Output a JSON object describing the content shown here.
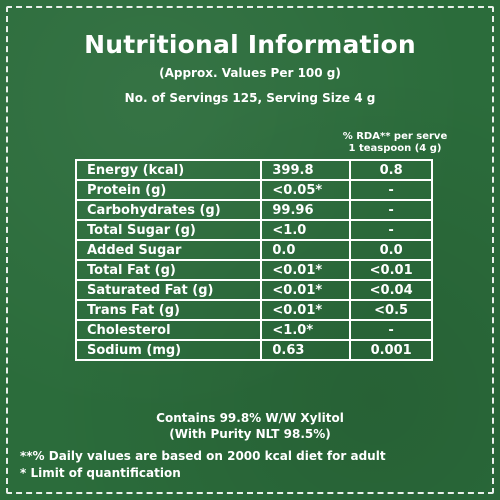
{
  "header": {
    "title": "Nutritional Information",
    "subtitle": "(Approx. Values Per 100 g)",
    "servings": "No. of Servings 125, Serving Size 4 g"
  },
  "rda_header": {
    "line1": "% RDA** per serve",
    "line2": "1 teaspoon (4 g)"
  },
  "table": {
    "rows": [
      {
        "name": "Energy (kcal)",
        "value": "399.8",
        "rda": "0.8"
      },
      {
        "name": "Protein (g)",
        "value": "<0.05*",
        "rda": "-"
      },
      {
        "name": "Carbohydrates (g)",
        "value": "99.96",
        "rda": "-"
      },
      {
        "name": "Total Sugar (g)",
        "value": "<1.0",
        "rda": "-"
      },
      {
        "name": "Added Sugar",
        "value": "0.0",
        "rda": "0.0"
      },
      {
        "name": "Total Fat (g)",
        "value": "<0.01*",
        "rda": "<0.01"
      },
      {
        "name": "Saturated Fat (g)",
        "value": "<0.01*",
        "rda": "<0.04"
      },
      {
        "name": "Trans Fat (g)",
        "value": "<0.01*",
        "rda": "<0.5"
      },
      {
        "name": "Cholesterol",
        "value": "<1.0*",
        "rda": "-"
      },
      {
        "name": "Sodium (mg)",
        "value": "0.63",
        "rda": "0.001"
      }
    ]
  },
  "contains": {
    "line1": "Contains 99.8%  W/W Xylitol",
    "line2": "(With Purity NLT 98.5%)"
  },
  "footnotes": {
    "daily_values": "**% Daily values are based on 2000 kcal diet for adult",
    "limit": "* Limit of quantification"
  },
  "colors": {
    "background": "#2b6c3b",
    "text": "#ffffff"
  }
}
